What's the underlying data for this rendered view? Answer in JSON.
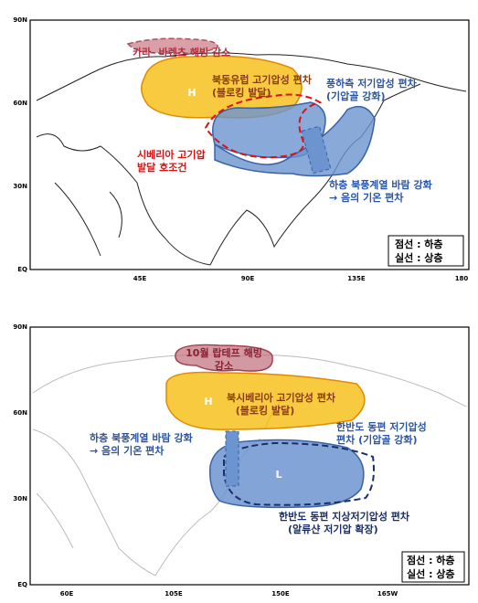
{
  "panels": [
    {
      "lat_labels": [
        "90N",
        "60N",
        "30N",
        "EQ"
      ],
      "lon_labels": [
        "45E",
        "90E",
        "135E",
        "180"
      ],
      "annotations": [
        "카라- 바렌츠 해빙 감소",
        "H",
        "북동유럽 고기압성 편차",
        "(블로킹 발달)",
        "풍하측 저기압성 편차",
        "(기압골 강화)",
        "시베리아 고기압",
        "발달 호조건",
        "하층 북풍계열 바람 강화",
        "→ 음의 기온 편차"
      ],
      "legend": [
        "점선 : 하층",
        "실선 : 상층"
      ]
    },
    {
      "lat_labels": [
        "90N",
        "60N",
        "30N",
        "EQ"
      ],
      "lon_labels": [
        "60E",
        "105E",
        "150E",
        "165W"
      ],
      "annotations": [
        "10월 랍테프 해빙",
        "감소",
        "H",
        "북시베리아 고기압성 편차",
        "(블로킹 발달)",
        "하층 북풍계열 바람 강화",
        "→ 음의 기온 편차",
        "한반도 동편 저기압성",
        "편차 (기압골 강화)",
        "L",
        "한반도 동편 지상저기압성 편차",
        "(알류샨 저기압 확장)"
      ],
      "legend": [
        "점선 : 하층",
        "실선 : 상층"
      ]
    }
  ]
}
